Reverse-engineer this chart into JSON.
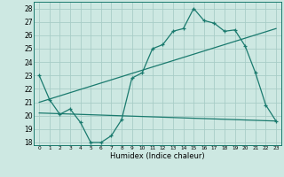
{
  "xlabel": "Humidex (Indice chaleur)",
  "xlim": [
    -0.5,
    23.5
  ],
  "ylim": [
    17.8,
    28.5
  ],
  "yticks": [
    18,
    19,
    20,
    21,
    22,
    23,
    24,
    25,
    26,
    27,
    28
  ],
  "xticks": [
    0,
    1,
    2,
    3,
    4,
    5,
    6,
    7,
    8,
    9,
    10,
    11,
    12,
    13,
    14,
    15,
    16,
    17,
    18,
    19,
    20,
    21,
    22,
    23
  ],
  "xtick_labels": [
    "0",
    "1",
    "2",
    "3",
    "4",
    "5",
    "6",
    "7",
    "8",
    "9",
    "10",
    "11",
    "12",
    "13",
    "14",
    "15",
    "16",
    "17",
    "18",
    "19",
    "20",
    "21",
    "22",
    "23"
  ],
  "bg_color": "#cde8e2",
  "grid_color": "#a8cdc7",
  "line_color": "#1a7a6e",
  "line1_x": [
    0,
    1,
    2,
    3,
    4,
    5,
    6,
    7,
    8,
    9,
    10,
    11,
    12,
    13,
    14,
    15,
    16,
    17,
    18,
    19,
    20,
    21,
    22,
    23
  ],
  "line1_y": [
    23.0,
    21.2,
    20.1,
    20.5,
    19.5,
    18.0,
    18.0,
    18.5,
    19.7,
    22.8,
    23.2,
    25.0,
    25.3,
    26.3,
    26.5,
    28.0,
    27.1,
    26.9,
    26.3,
    26.4,
    25.2,
    23.2,
    20.8,
    19.6
  ],
  "line2_x": [
    0,
    23
  ],
  "line2_y": [
    21.0,
    26.5
  ],
  "line3_x": [
    0,
    23
  ],
  "line3_y": [
    20.2,
    19.6
  ]
}
